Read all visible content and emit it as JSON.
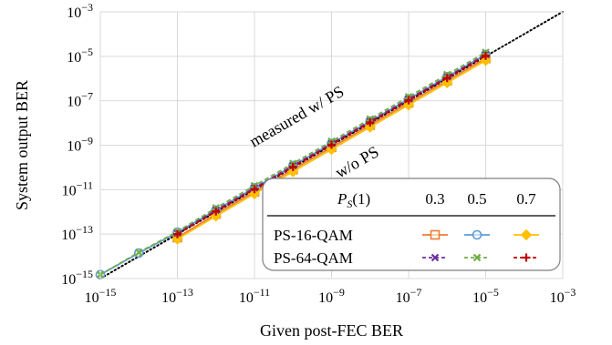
{
  "chart_data": {
    "type": "line",
    "xlabel": "Given post-FEC BER",
    "ylabel": "System output BER",
    "x_scale": "log",
    "y_scale": "log",
    "xlim": [
      1e-15,
      0.001
    ],
    "ylim": [
      1e-15,
      0.001
    ],
    "grid": true,
    "x_ticks": [
      {
        "base": "10",
        "exp": "−15",
        "value": 1e-15
      },
      {
        "base": "10",
        "exp": "−13",
        "value": 1e-13
      },
      {
        "base": "10",
        "exp": "−11",
        "value": 1e-11
      },
      {
        "base": "10",
        "exp": "−9",
        "value": 1e-09
      },
      {
        "base": "10",
        "exp": "−7",
        "value": 1e-07
      },
      {
        "base": "10",
        "exp": "−5",
        "value": 1e-05
      },
      {
        "base": "10",
        "exp": "−3",
        "value": 0.001
      }
    ],
    "y_ticks": [
      {
        "base": "10",
        "exp": "−3",
        "value": 0.001
      },
      {
        "base": "10",
        "exp": "−5",
        "value": 1e-05
      },
      {
        "base": "10",
        "exp": "−7",
        "value": 1e-07
      },
      {
        "base": "10",
        "exp": "−9",
        "value": 1e-09
      },
      {
        "base": "10",
        "exp": "−11",
        "value": 1e-11
      },
      {
        "base": "10",
        "exp": "−13",
        "value": 1e-13
      },
      {
        "base": "10",
        "exp": "−15",
        "value": 1e-15
      }
    ],
    "annotations": [
      {
        "text": "measured w/ PS"
      },
      {
        "text": "w/o PS"
      }
    ],
    "reference_line": {
      "x": [
        1e-15,
        0.001
      ],
      "y": [
        1e-15,
        0.001
      ],
      "style": "dotted",
      "color": "#000000"
    },
    "legend": {
      "placement": "bottom-right",
      "header_label": "P",
      "header_sub": "S",
      "header_arg": "(1)",
      "columns": [
        "0.3",
        "0.5",
        "0.7"
      ],
      "rows": [
        "PS-16-QAM",
        "PS-64-QAM"
      ]
    },
    "series": [
      {
        "row": 0,
        "col": 0,
        "color": "#ED7D31",
        "marker": "square",
        "dash": "solid",
        "x": [
          1e-13,
          1e-12,
          1e-11,
          1e-10,
          1e-09,
          1e-08,
          1e-07,
          1e-06,
          1e-05
        ],
        "y": [
          7e-14,
          8e-13,
          8e-12,
          8e-11,
          8e-10,
          8e-09,
          8e-08,
          8e-07,
          8e-06
        ]
      },
      {
        "row": 0,
        "col": 1,
        "color": "#5B9BD5",
        "marker": "circle",
        "dash": "solid",
        "x": [
          1e-15,
          1e-14,
          1e-13,
          1e-12,
          1e-11,
          1e-10,
          1e-09,
          1e-08,
          1e-07,
          1e-06,
          1e-05
        ],
        "y": [
          1.5e-15,
          1.4e-14,
          1.2e-13,
          1.2e-12,
          1.2e-11,
          1.2e-10,
          1.2e-09,
          1.2e-08,
          1.2e-07,
          1.2e-06,
          1.2e-05
        ]
      },
      {
        "row": 0,
        "col": 2,
        "color": "#FFC000",
        "marker": "diamond",
        "dash": "solid",
        "x": [
          1e-13,
          1e-12,
          1e-11,
          1e-10,
          1e-09,
          1e-08,
          1e-07,
          1e-06,
          1e-05
        ],
        "y": [
          6e-14,
          6.5e-13,
          6.5e-12,
          6.5e-11,
          6.5e-10,
          6.5e-09,
          6.5e-08,
          6.5e-07,
          6.5e-06
        ]
      },
      {
        "row": 1,
        "col": 0,
        "color": "#7030A0",
        "marker": "x",
        "dash": "dash",
        "x": [
          1e-13,
          1e-12,
          1e-11,
          1e-10,
          1e-09,
          1e-08,
          1e-07,
          1e-06,
          1e-05
        ],
        "y": [
          1.1e-13,
          1.2e-12,
          1.2e-11,
          1.2e-10,
          1.2e-09,
          1.2e-08,
          1.2e-07,
          1.2e-06,
          1.2e-05
        ]
      },
      {
        "row": 1,
        "col": 1,
        "color": "#70AD47",
        "marker": "x",
        "dash": "dash",
        "x": [
          1e-15,
          1e-14,
          1e-13,
          1e-12,
          1e-11,
          1e-10,
          1e-09,
          1e-08,
          1e-07,
          1e-06,
          1e-05
        ],
        "y": [
          1.5e-15,
          1.5e-14,
          1.3e-13,
          1.5e-12,
          1.5e-11,
          1.5e-10,
          1.5e-09,
          1.5e-08,
          1.5e-07,
          1.5e-06,
          1.5e-05
        ]
      },
      {
        "row": 1,
        "col": 2,
        "color": "#C00000",
        "marker": "plus",
        "dash": "dash",
        "x": [
          1e-13,
          1e-12,
          1e-11,
          1e-10,
          1e-09,
          1e-08,
          1e-07,
          1e-06,
          1e-05
        ],
        "y": [
          1e-13,
          1.05e-12,
          1.05e-11,
          1.05e-10,
          1.05e-09,
          1.05e-08,
          1.05e-07,
          1.05e-06,
          1.05e-05
        ]
      }
    ]
  }
}
